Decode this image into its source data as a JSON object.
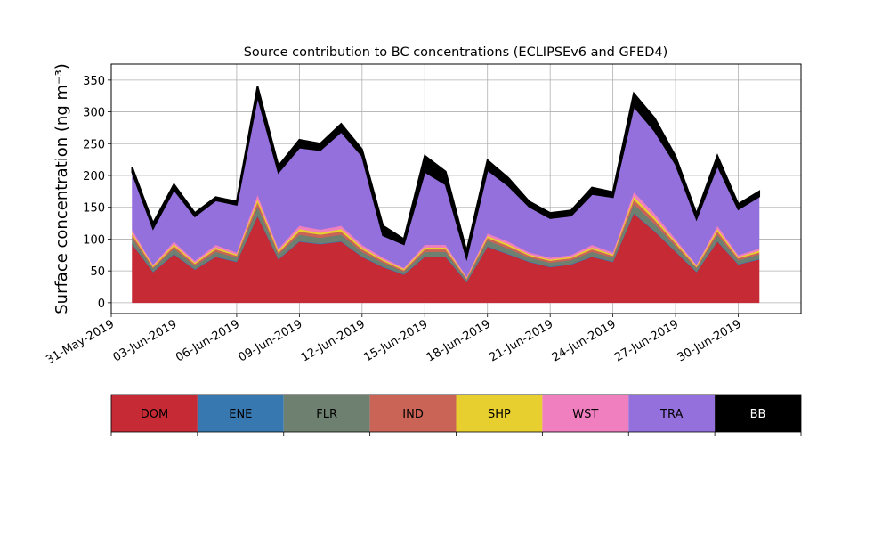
{
  "chart_data": {
    "type": "stacked_area",
    "title": "Source contribution to BC concentrations (ECLIPSEv6 and GFED4)",
    "y_label": "Surface concentration (ng m⁻³)",
    "x": [
      "2019-06-01",
      "2019-06-02",
      "2019-06-03",
      "2019-06-04",
      "2019-06-05",
      "2019-06-06",
      "2019-06-07",
      "2019-06-08",
      "2019-06-09",
      "2019-06-10",
      "2019-06-11",
      "2019-06-12",
      "2019-06-13",
      "2019-06-14",
      "2019-06-15",
      "2019-06-16",
      "2019-06-17",
      "2019-06-18",
      "2019-06-19",
      "2019-06-20",
      "2019-06-21",
      "2019-06-22",
      "2019-06-23",
      "2019-06-24",
      "2019-06-25",
      "2019-06-26",
      "2019-06-27",
      "2019-06-28",
      "2019-06-29",
      "2019-06-30",
      "2019-07-01"
    ],
    "series": [
      {
        "name": "DOM",
        "color": "#c52a35",
        "values": [
          92,
          48,
          76,
          52,
          72,
          64,
          136,
          68,
          96,
          92,
          96,
          72,
          56,
          44,
          72,
          72,
          32,
          88,
          76,
          64,
          56,
          60,
          72,
          64,
          140,
          112,
          80,
          48,
          96,
          60,
          68
        ]
      },
      {
        "name": "ENE",
        "color": "#3878b0",
        "values": [
          1,
          1,
          1,
          1,
          1,
          1,
          1,
          1,
          1,
          1,
          1,
          1,
          1,
          1,
          1,
          1,
          1,
          1,
          1,
          1,
          1,
          1,
          1,
          1,
          1,
          1,
          1,
          1,
          1,
          1,
          1
        ]
      },
      {
        "name": "FLR",
        "color": "#6e8070",
        "values": [
          9,
          5,
          8,
          5,
          7,
          6,
          14,
          7,
          10,
          9,
          10,
          7,
          6,
          4,
          7,
          7,
          3,
          9,
          8,
          6,
          6,
          6,
          7,
          6,
          14,
          11,
          8,
          5,
          10,
          6,
          7
        ]
      },
      {
        "name": "IND",
        "color": "#c96457",
        "values": [
          5,
          2,
          4,
          3,
          4,
          3,
          7,
          3,
          5,
          5,
          5,
          4,
          3,
          2,
          4,
          4,
          2,
          4,
          4,
          3,
          3,
          3,
          4,
          3,
          7,
          6,
          4,
          2,
          5,
          3,
          3
        ]
      },
      {
        "name": "SHP",
        "color": "#e8cf30",
        "values": [
          3,
          2,
          3,
          2,
          3,
          2,
          5,
          3,
          4,
          3,
          4,
          3,
          2,
          2,
          3,
          3,
          1,
          3,
          3,
          2,
          2,
          2,
          3,
          2,
          5,
          4,
          3,
          2,
          4,
          2,
          3
        ]
      },
      {
        "name": "WST",
        "color": "#f07fbf",
        "values": [
          5,
          2,
          4,
          3,
          4,
          3,
          7,
          3,
          5,
          5,
          5,
          4,
          3,
          2,
          4,
          4,
          2,
          4,
          4,
          3,
          3,
          3,
          4,
          3,
          7,
          6,
          4,
          2,
          5,
          3,
          3
        ]
      },
      {
        "name": "TRA",
        "color": "#9370db",
        "values": [
          90,
          57,
          82,
          70,
          70,
          75,
          155,
          120,
          123,
          125,
          148,
          140,
          35,
          37,
          115,
          95,
          30,
          100,
          88,
          72,
          62,
          62,
          80,
          87,
          135,
          130,
          118,
          72,
          95,
          72,
          82
        ]
      },
      {
        "name": "BB",
        "color": "#000000",
        "values": [
          8,
          8,
          8,
          5,
          5,
          5,
          15,
          10,
          12,
          10,
          12,
          10,
          15,
          8,
          25,
          20,
          10,
          15,
          12,
          8,
          8,
          8,
          10,
          8,
          20,
          20,
          12,
          8,
          15,
          8,
          8
        ]
      }
    ],
    "xlim": [
      "2019-05-31",
      "2019-07-03"
    ],
    "xticks": [
      {
        "value": "2019-05-31",
        "label": "31-May-2019"
      },
      {
        "value": "2019-06-03",
        "label": "03-Jun-2019"
      },
      {
        "value": "2019-06-06",
        "label": "06-Jun-2019"
      },
      {
        "value": "2019-06-09",
        "label": "09-Jun-2019"
      },
      {
        "value": "2019-06-12",
        "label": "12-Jun-2019"
      },
      {
        "value": "2019-06-15",
        "label": "15-Jun-2019"
      },
      {
        "value": "2019-06-18",
        "label": "18-Jun-2019"
      },
      {
        "value": "2019-06-21",
        "label": "21-Jun-2019"
      },
      {
        "value": "2019-06-24",
        "label": "24-Jun-2019"
      },
      {
        "value": "2019-06-27",
        "label": "27-Jun-2019"
      },
      {
        "value": "2019-06-30",
        "label": "30-Jun-2019"
      }
    ],
    "ylim": [
      -17,
      375
    ],
    "yticks": [
      0,
      50,
      100,
      150,
      200,
      250,
      300,
      350
    ],
    "grid": true
  }
}
